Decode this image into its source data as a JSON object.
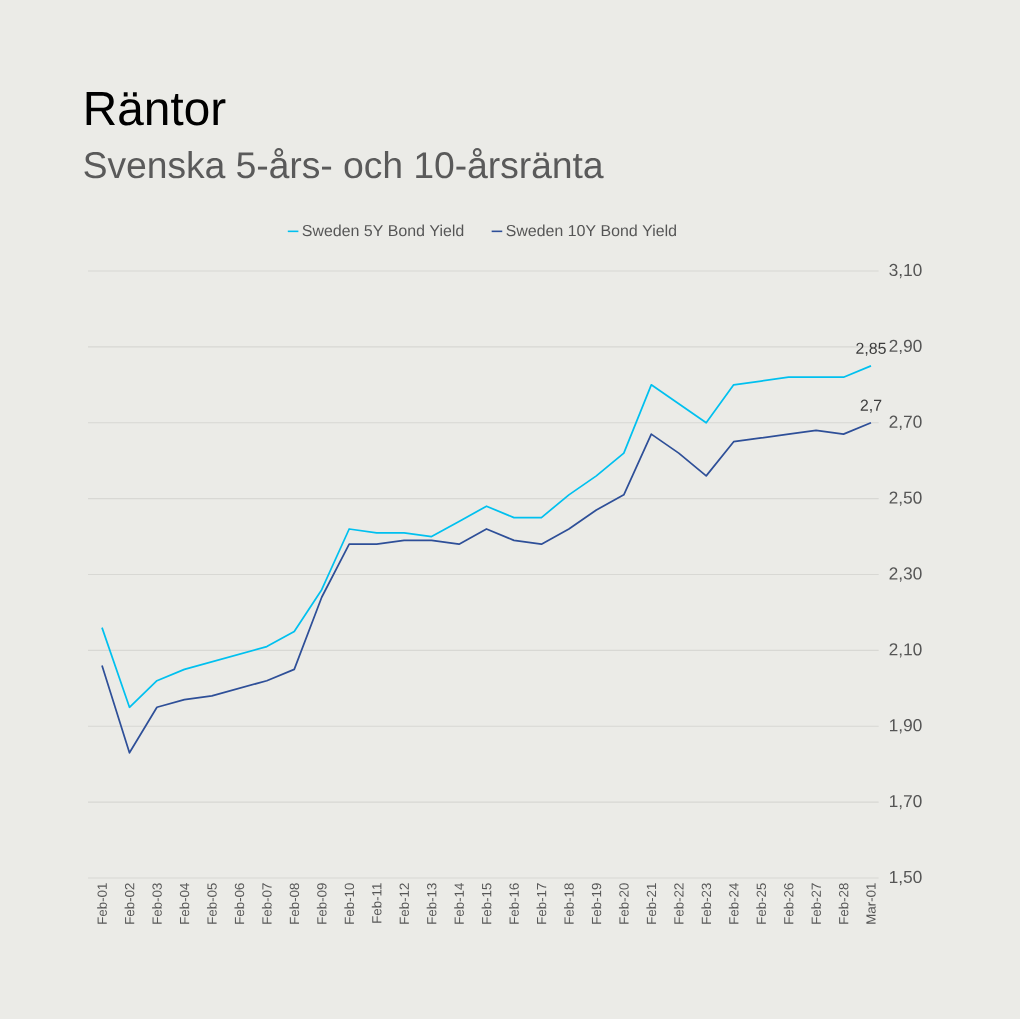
{
  "chart_data": {
    "type": "line",
    "title": "Räntor",
    "subtitle": "Svenska 5-års- och 10-årsränta",
    "categories": [
      "Feb-01",
      "Feb-02",
      "Feb-03",
      "Feb-04",
      "Feb-05",
      "Feb-06",
      "Feb-07",
      "Feb-08",
      "Feb-09",
      "Feb-10",
      "Feb-11",
      "Feb-12",
      "Feb-13",
      "Feb-14",
      "Feb-15",
      "Feb-16",
      "Feb-17",
      "Feb-18",
      "Feb-19",
      "Feb-20",
      "Feb-21",
      "Feb-22",
      "Feb-23",
      "Feb-24",
      "Feb-25",
      "Feb-26",
      "Feb-27",
      "Feb-28",
      "Mar-01"
    ],
    "series": [
      {
        "name": "Sweden 5Y Bond Yield",
        "color": "#00c0ef",
        "values": [
          2.16,
          1.95,
          2.02,
          2.05,
          2.07,
          2.09,
          2.11,
          2.15,
          2.26,
          2.42,
          2.41,
          2.41,
          2.4,
          2.44,
          2.48,
          2.45,
          2.45,
          2.51,
          2.56,
          2.62,
          2.8,
          2.75,
          2.7,
          2.8,
          2.81,
          2.82,
          2.82,
          2.82,
          2.85
        ]
      },
      {
        "name": "Sweden 10Y Bond Yield",
        "color": "#2e4f98",
        "values": [
          2.06,
          1.83,
          1.95,
          1.97,
          1.98,
          2.0,
          2.02,
          2.05,
          2.24,
          2.38,
          2.38,
          2.39,
          2.39,
          2.38,
          2.42,
          2.39,
          2.38,
          2.42,
          2.47,
          2.51,
          2.67,
          2.62,
          2.56,
          2.65,
          2.66,
          2.67,
          2.68,
          2.67,
          2.7
        ]
      }
    ],
    "ylim": [
      1.5,
      3.1
    ],
    "yticks": [
      {
        "value": 1.5,
        "label": "1,50"
      },
      {
        "value": 1.7,
        "label": "1,70"
      },
      {
        "value": 1.9,
        "label": "1,90"
      },
      {
        "value": 2.1,
        "label": "2,10"
      },
      {
        "value": 2.3,
        "label": "2,30"
      },
      {
        "value": 2.5,
        "label": "2,50"
      },
      {
        "value": 2.7,
        "label": "2,70"
      },
      {
        "value": 2.9,
        "label": "2,90"
      },
      {
        "value": 3.1,
        "label": "3,10"
      }
    ],
    "annotations": [
      {
        "text": "2,85",
        "x": "Mar-01",
        "y": 2.85
      },
      {
        "text": "2,7",
        "x": "Mar-01",
        "y": 2.7
      }
    ],
    "grid": "y",
    "legend": "top",
    "marker": "none",
    "line_style": "solid"
  }
}
